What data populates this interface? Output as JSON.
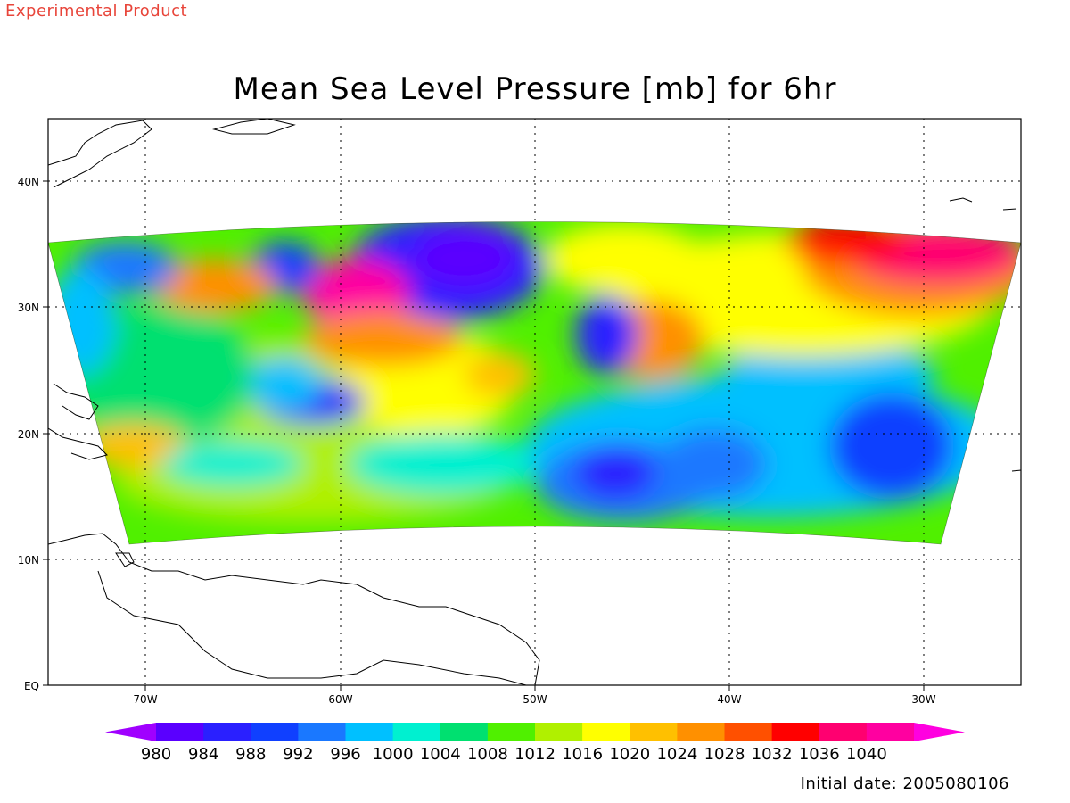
{
  "banner": "Experimental Product",
  "title": "Mean Sea Level Pressure [mb] for 6hr",
  "initial_date": "Initial date: 2005080106",
  "lat_ticks": [
    "40N",
    "30N",
    "20N",
    "10N",
    "EQ"
  ],
  "lon_ticks": [
    "70W",
    "60W",
    "50W",
    "40W",
    "30W"
  ],
  "colorbar": {
    "labels": [
      "980",
      "984",
      "988",
      "992",
      "996",
      "1000",
      "1004",
      "1008",
      "1012",
      "1016",
      "1020",
      "1024",
      "1028",
      "1032",
      "1036",
      "1040"
    ],
    "colors": [
      "#a000ff",
      "#5a00ff",
      "#2a20ff",
      "#1040ff",
      "#1a78ff",
      "#00c0ff",
      "#00f0d0",
      "#00e070",
      "#50f000",
      "#b0f000",
      "#ffff00",
      "#ffc000",
      "#ff9000",
      "#ff5000",
      "#ff0000",
      "#ff0070",
      "#ff00a0",
      "#ff00e0"
    ]
  },
  "chart_data": {
    "type": "heatmap",
    "variable": "Mean Sea Level Pressure",
    "units": "mb",
    "forecast_hour": 6,
    "x_range_lon": [
      -75,
      -25
    ],
    "y_range_lat": [
      0,
      45
    ],
    "contour_levels": [
      980,
      984,
      988,
      992,
      996,
      1000,
      1004,
      1008,
      1012,
      1016,
      1020,
      1024,
      1028,
      1032,
      1036,
      1040
    ]
  }
}
